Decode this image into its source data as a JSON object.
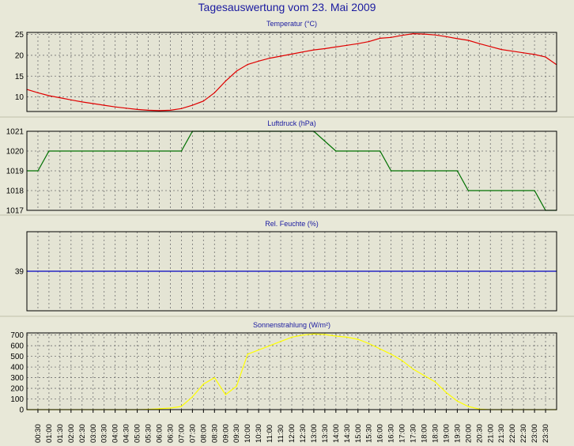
{
  "page_title": "Tagesauswertung vom 23. Mai 2009",
  "colors": {
    "background": "#e8e8d8",
    "title": "#1a1aa0"
  },
  "chart_data": [
    {
      "type": "line",
      "title": "Temperatur (°C)",
      "color": "#e00000",
      "ylim": [
        6.5,
        25.5
      ],
      "yticks": [
        10,
        15,
        20,
        25
      ],
      "grid": true,
      "x": [
        "00:00",
        "00:30",
        "01:00",
        "01:30",
        "02:00",
        "02:30",
        "03:00",
        "03:30",
        "04:00",
        "04:30",
        "05:00",
        "05:30",
        "06:00",
        "06:30",
        "07:00",
        "07:30",
        "08:00",
        "08:30",
        "09:00",
        "09:30",
        "10:00",
        "10:30",
        "11:00",
        "11:30",
        "12:00",
        "12:30",
        "13:00",
        "13:30",
        "14:00",
        "14:30",
        "15:00",
        "15:30",
        "16:00",
        "16:30",
        "17:00",
        "17:30",
        "18:00",
        "18:30",
        "19:00",
        "19:30",
        "20:00",
        "20:30",
        "21:00",
        "21:30",
        "22:00",
        "22:30",
        "23:00",
        "23:30",
        "23:59"
      ],
      "values": [
        11.8,
        11,
        10.3,
        9.8,
        9.3,
        8.8,
        8.4,
        8,
        7.6,
        7.3,
        7,
        6.8,
        6.7,
        6.8,
        7.2,
        8,
        9,
        11,
        13.8,
        16.2,
        17.8,
        18.6,
        19.3,
        19.8,
        20.3,
        20.8,
        21.3,
        21.6,
        22,
        22.4,
        22.8,
        23.3,
        24.1,
        24.3,
        24.8,
        25.2,
        25.1,
        24.9,
        24.5,
        24,
        23.6,
        22.8,
        22.1,
        21.4,
        21,
        20.6,
        20.2,
        19.6,
        17.8
      ]
    },
    {
      "type": "line",
      "title": "Luftdruck (hPa)",
      "color": "#007000",
      "ylim": [
        1017,
        1021
      ],
      "yticks": [
        1017,
        1018,
        1019,
        1020,
        1021
      ],
      "grid": true,
      "x": [
        "00:00",
        "00:30",
        "01:00",
        "07:00",
        "07:30",
        "08:00",
        "12:30",
        "13:00",
        "14:00",
        "14:30",
        "15:00",
        "15:30",
        "16:00",
        "16:30",
        "17:00",
        "17:30",
        "18:00",
        "18:30",
        "19:00",
        "19:30",
        "20:00",
        "20:30",
        "21:00",
        "21:30",
        "22:00",
        "22:30",
        "23:00",
        "23:30",
        "23:59"
      ],
      "values": [
        1019,
        1019,
        1020,
        1020,
        1021,
        1021,
        1021,
        1021,
        1020,
        1020,
        1020,
        1020,
        1020,
        1019,
        1019,
        1019,
        1019,
        1019,
        1019,
        1019,
        1018,
        1018,
        1018,
        1018,
        1018,
        1018,
        1018,
        1017,
        1017
      ]
    },
    {
      "type": "line",
      "title": "Rel. Feuchte (%)",
      "color": "#0000c0",
      "ylim": [
        38,
        40
      ],
      "yticks": [
        39
      ],
      "grid": true,
      "x": [
        "00:00",
        "23:59"
      ],
      "values": [
        39,
        39
      ]
    },
    {
      "type": "line",
      "title": "Sonnenstrahlung (W/m²)",
      "color": "#ffff00",
      "ylim": [
        0,
        720
      ],
      "yticks": [
        0,
        100,
        200,
        300,
        400,
        500,
        600,
        700
      ],
      "grid": true,
      "x": [
        "00:00",
        "05:00",
        "05:30",
        "06:00",
        "06:30",
        "07:00",
        "07:30",
        "08:00",
        "08:30",
        "09:00",
        "09:30",
        "10:00",
        "10:30",
        "11:00",
        "11:30",
        "12:00",
        "12:30",
        "13:00",
        "13:30",
        "14:00",
        "14:30",
        "15:00",
        "15:30",
        "16:00",
        "16:30",
        "17:00",
        "17:30",
        "18:00",
        "18:30",
        "19:00",
        "19:30",
        "20:00",
        "20:30",
        "21:00",
        "23:59"
      ],
      "values": [
        0,
        0,
        3,
        8,
        15,
        30,
        120,
        240,
        300,
        140,
        220,
        520,
        560,
        600,
        640,
        680,
        700,
        710,
        705,
        690,
        680,
        660,
        620,
        570,
        520,
        460,
        380,
        320,
        260,
        160,
        80,
        30,
        5,
        0,
        0
      ]
    }
  ],
  "x_axis": {
    "labels": [
      "00:30",
      "01:00",
      "01:30",
      "02:00",
      "02:30",
      "03:00",
      "03:30",
      "04:00",
      "04:30",
      "05:00",
      "05:30",
      "06:00",
      "06:30",
      "07:00",
      "07:30",
      "08:00",
      "08:30",
      "09:00",
      "09:30",
      "10:00",
      "10:30",
      "11:00",
      "11:30",
      "12:00",
      "12:30",
      "13:00",
      "13:30",
      "14:00",
      "14:30",
      "15:00",
      "15:30",
      "16:00",
      "16:30",
      "17:00",
      "17:30",
      "18:00",
      "18:30",
      "19:00",
      "19:30",
      "20:00",
      "20:30",
      "21:00",
      "21:30",
      "22:00",
      "22:30",
      "23:00",
      "23:30"
    ]
  }
}
